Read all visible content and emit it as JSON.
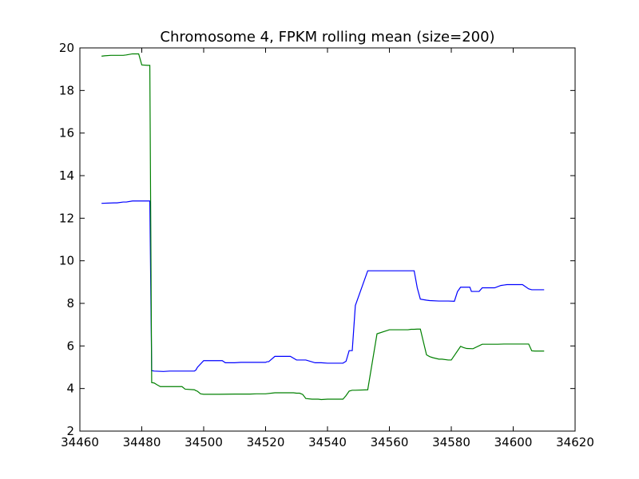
{
  "chart_data": {
    "type": "line",
    "title": "Chromosome 4, FPKM rolling mean (size=200)",
    "xlabel": "",
    "ylabel": "",
    "xlim": [
      34460,
      34620
    ],
    "ylim": [
      2,
      20
    ],
    "xticks": [
      34460,
      34480,
      34500,
      34520,
      34540,
      34560,
      34580,
      34600,
      34620
    ],
    "yticks": [
      2,
      4,
      6,
      8,
      10,
      12,
      14,
      16,
      18,
      20
    ],
    "grid": false,
    "legend": "none",
    "series": [
      {
        "color": "#0000ff",
        "x": [
          34467,
          34471,
          34472,
          34474,
          34475,
          34477,
          34479,
          34480,
          34482,
          34482.6,
          34483.2,
          34484,
          34487,
          34489,
          34492,
          34494,
          34495,
          34496,
          34497,
          34497.5,
          34498,
          34500,
          34503,
          34505,
          34506,
          34507,
          34508,
          34510,
          34512,
          34514,
          34517,
          34518,
          34520,
          34520.5,
          34521,
          34523,
          34526,
          34527,
          34528,
          34530,
          34531,
          34532,
          34533,
          34536,
          34538,
          34540,
          34541,
          34541.5,
          34542,
          34545,
          34546,
          34547,
          34548,
          34549,
          34553,
          34556,
          34560,
          34564,
          34566,
          34567,
          34568,
          34569,
          34570,
          34572,
          34573,
          34576,
          34579,
          34581,
          34582,
          34583,
          34586,
          34586.5,
          34587,
          34589,
          34590,
          34591,
          34594,
          34596,
          34597,
          34598,
          34601,
          34603,
          34605,
          34606,
          34607,
          34610
        ],
        "values": [
          12.7,
          12.72,
          12.72,
          12.76,
          12.76,
          12.81,
          12.81,
          12.81,
          12.81,
          12.81,
          4.84,
          4.82,
          4.8,
          4.82,
          4.82,
          4.82,
          4.82,
          4.82,
          4.82,
          4.87,
          5.0,
          5.31,
          5.31,
          5.31,
          5.31,
          5.21,
          5.21,
          5.21,
          5.23,
          5.23,
          5.23,
          5.23,
          5.23,
          5.26,
          5.26,
          5.51,
          5.51,
          5.51,
          5.51,
          5.34,
          5.34,
          5.34,
          5.34,
          5.21,
          5.21,
          5.19,
          5.19,
          5.19,
          5.19,
          5.19,
          5.28,
          5.78,
          5.78,
          7.9,
          9.53,
          9.53,
          9.53,
          9.53,
          9.53,
          9.53,
          9.53,
          8.73,
          8.2,
          8.15,
          8.13,
          8.11,
          8.11,
          8.1,
          8.55,
          8.76,
          8.76,
          8.56,
          8.56,
          8.56,
          8.73,
          8.73,
          8.73,
          8.84,
          8.86,
          8.88,
          8.88,
          8.88,
          8.68,
          8.64,
          8.64,
          8.64
        ]
      },
      {
        "color": "#008000",
        "x": [
          34467,
          34468,
          34470,
          34472,
          34474,
          34475,
          34477,
          34478,
          34479,
          34480,
          34482,
          34482.6,
          34483.2,
          34484,
          34485,
          34486,
          34490,
          34491,
          34493,
          34494,
          34497,
          34497.5,
          34498,
          34499,
          34500,
          34505,
          34510,
          34515,
          34517,
          34520,
          34523,
          34525,
          34527,
          34529,
          34530,
          34531,
          34532,
          34533,
          34535,
          34536,
          34537,
          34538,
          34540,
          34541,
          34542,
          34545,
          34546,
          34547,
          34548,
          34549,
          34553,
          34556,
          34560,
          34564,
          34566,
          34567,
          34568,
          34569,
          34570,
          34572,
          34573,
          34574,
          34576,
          34577,
          34579,
          34580,
          34583,
          34584,
          34585,
          34587,
          34590,
          34591,
          34592,
          34595,
          34597,
          34600,
          34603,
          34605,
          34606,
          34607,
          34608,
          34610
        ],
        "values": [
          19.61,
          19.63,
          19.65,
          19.65,
          19.65,
          19.67,
          19.72,
          19.72,
          19.72,
          19.2,
          19.18,
          19.18,
          4.28,
          4.26,
          4.17,
          4.09,
          4.09,
          4.09,
          4.09,
          3.97,
          3.94,
          3.9,
          3.87,
          3.75,
          3.73,
          3.73,
          3.74,
          3.74,
          3.75,
          3.75,
          3.8,
          3.8,
          3.8,
          3.8,
          3.78,
          3.78,
          3.72,
          3.53,
          3.5,
          3.5,
          3.5,
          3.48,
          3.5,
          3.5,
          3.5,
          3.5,
          3.67,
          3.88,
          3.92,
          3.92,
          3.94,
          6.57,
          6.76,
          6.76,
          6.76,
          6.78,
          6.78,
          6.79,
          6.79,
          5.58,
          5.5,
          5.45,
          5.38,
          5.38,
          5.34,
          5.34,
          5.98,
          5.92,
          5.88,
          5.87,
          6.08,
          6.08,
          6.08,
          6.08,
          6.09,
          6.09,
          6.09,
          6.09,
          5.77,
          5.76,
          5.76,
          5.76
        ]
      }
    ]
  }
}
